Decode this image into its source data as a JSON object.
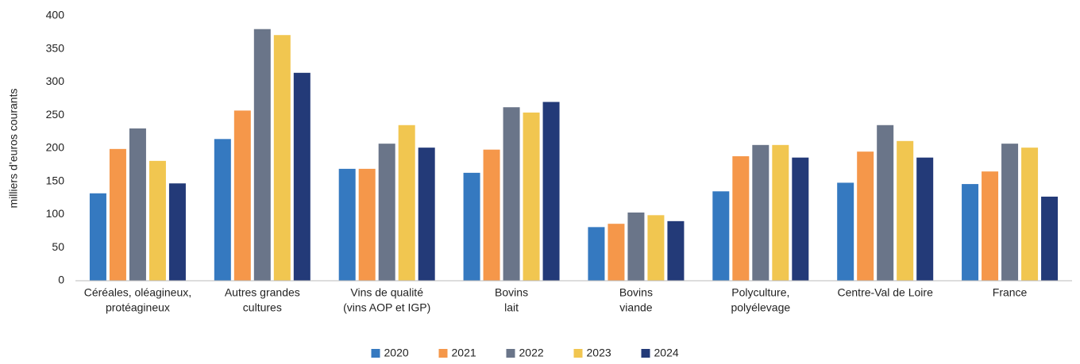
{
  "chart_data": {
    "type": "bar",
    "y_label": "milliers d’euros courants",
    "categories": [
      [
        "Céréales, oléagineux,",
        "protéagineux"
      ],
      [
        "Autres grandes",
        "cultures"
      ],
      [
        "Vins de qualité",
        "(vins AOP et IGP)"
      ],
      [
        "Bovins",
        "lait"
      ],
      [
        "Bovins",
        "viande"
      ],
      [
        "Polyculture,",
        "polyélevage"
      ],
      [
        "Centre-Val de Loire"
      ],
      [
        "France"
      ]
    ],
    "series": [
      {
        "name": "2020",
        "color": "#3579c0",
        "values": [
          132,
          214,
          169,
          163,
          81,
          135,
          148,
          146
        ]
      },
      {
        "name": "2021",
        "color": "#f5974a",
        "values": [
          199,
          257,
          169,
          198,
          86,
          188,
          195,
          165
        ]
      },
      {
        "name": "2022",
        "color": "#6a7589",
        "values": [
          230,
          380,
          207,
          262,
          103,
          205,
          235,
          207
        ]
      },
      {
        "name": "2023",
        "color": "#f1c650",
        "values": [
          181,
          371,
          235,
          254,
          99,
          205,
          211,
          201
        ]
      },
      {
        "name": "2024",
        "color": "#233a78",
        "values": [
          147,
          314,
          201,
          270,
          90,
          186,
          186,
          127
        ]
      }
    ],
    "ylim": [
      0,
      400
    ],
    "yticks": [
      0,
      50,
      100,
      150,
      200,
      250,
      300,
      350,
      400
    ],
    "grid": false,
    "legend": "bottom"
  }
}
